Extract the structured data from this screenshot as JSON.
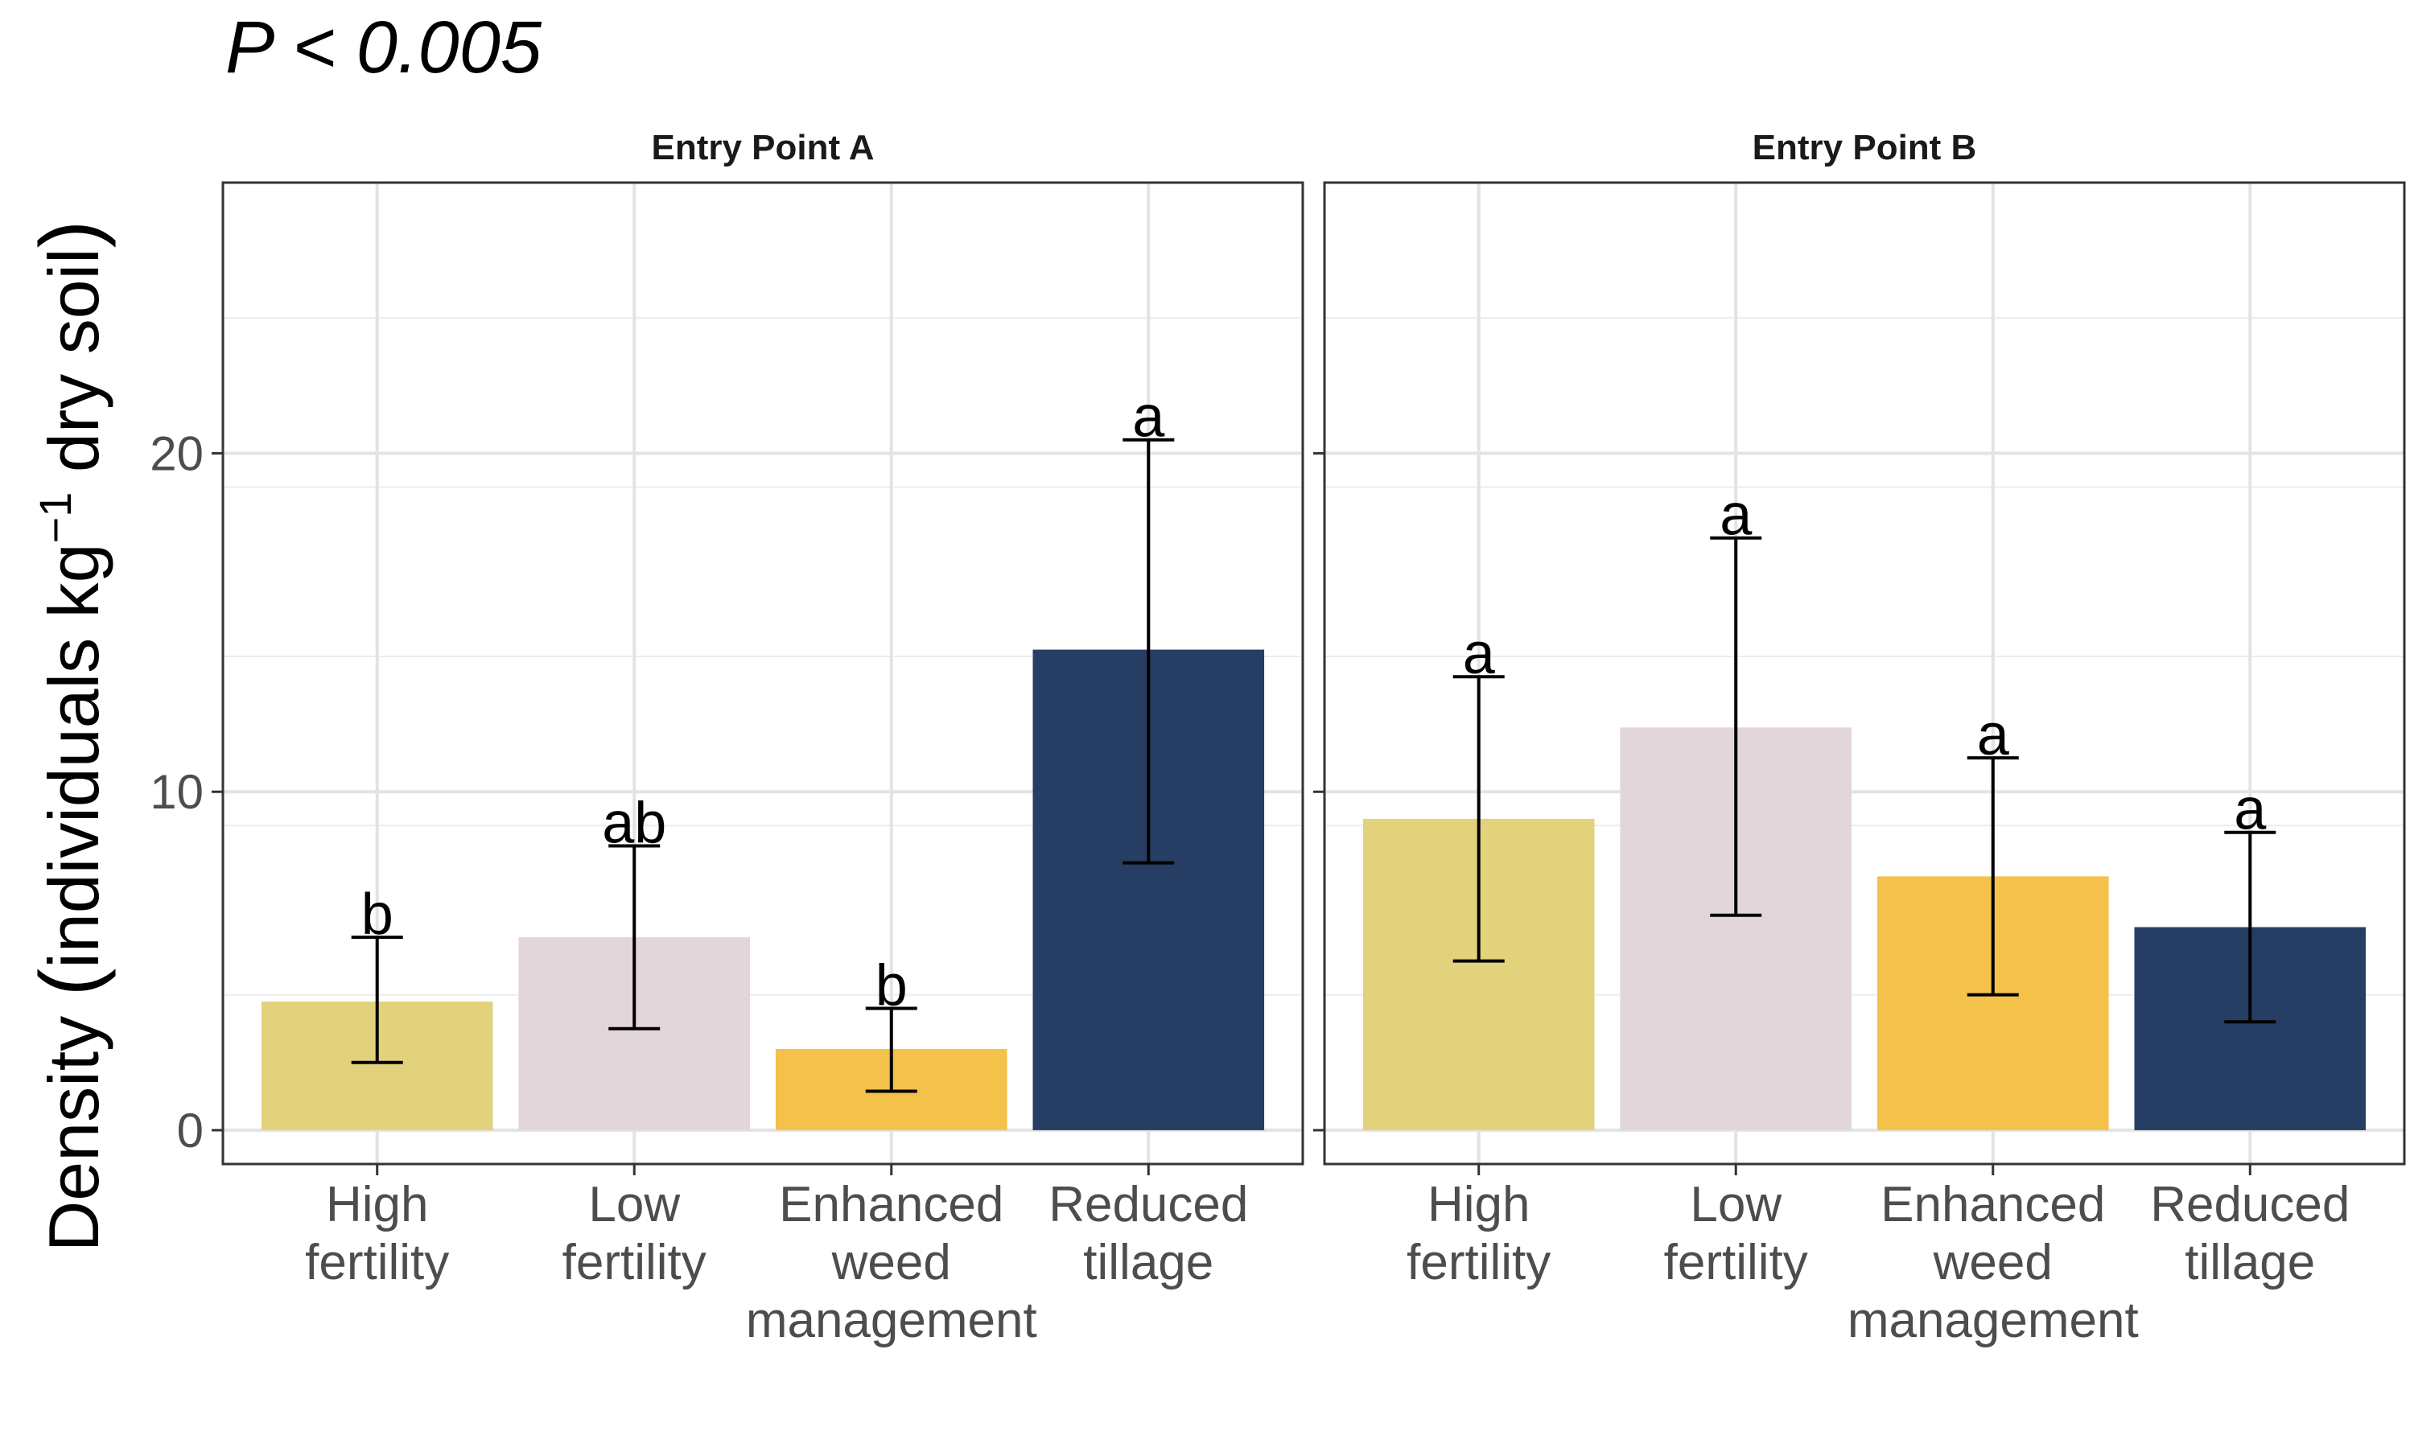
{
  "chart_data": {
    "type": "bar",
    "title": "P < 0.005",
    "ylabel": {
      "prefix": "Density ",
      "open": "(",
      "main": "individuals kg",
      "sup": "−1",
      "suffix": " dry soil",
      "close": ")"
    },
    "ylim": [
      -1,
      28
    ],
    "yticks": [
      0,
      10,
      20
    ],
    "grid": true,
    "categories": [
      [
        "High",
        "fertility"
      ],
      [
        "Low",
        "fertility"
      ],
      [
        "Enhanced",
        "weed",
        "management"
      ],
      [
        "Reduced",
        "tillage"
      ]
    ],
    "colors": [
      "#E2D27C",
      "#E3D6DA",
      "#F4C24A",
      "#263E63"
    ],
    "panels": [
      {
        "name": "Entry Point A",
        "values": [
          3.8,
          5.7,
          2.4,
          14.2
        ],
        "err_low": [
          2.0,
          3.0,
          1.15,
          7.9
        ],
        "err_high": [
          5.7,
          8.4,
          3.6,
          20.4
        ],
        "letters": [
          "b",
          "ab",
          "b",
          "a"
        ]
      },
      {
        "name": "Entry Point B",
        "values": [
          9.2,
          11.9,
          7.5,
          6.0
        ],
        "err_low": [
          5.0,
          6.35,
          4.0,
          3.2
        ],
        "err_high": [
          13.4,
          17.5,
          11.0,
          8.8
        ],
        "letters": [
          "a",
          "a",
          "a",
          "a"
        ]
      }
    ]
  }
}
